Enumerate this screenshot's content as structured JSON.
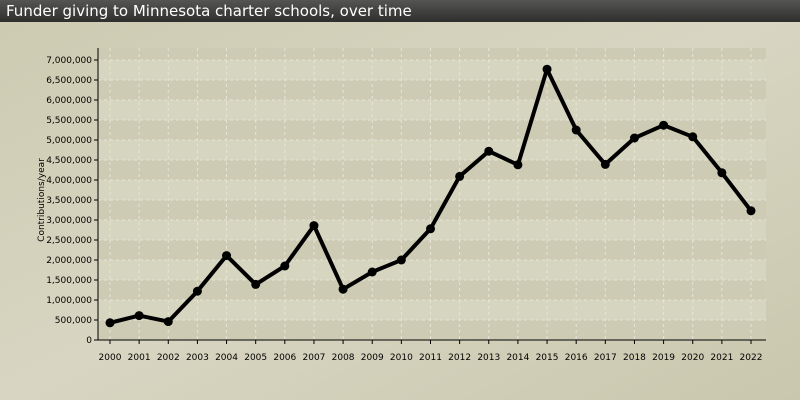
{
  "colors": {
    "title_bar": "#3a3a38",
    "background": "#cfcdb4",
    "plot_band_light": "#d6d5c0",
    "plot_band_dark": "#cdcbb4",
    "line": "#000000",
    "axis": "#000000",
    "grid": "#e6e5d6"
  },
  "chart_data": {
    "type": "line",
    "title": "Funder giving to Minnesota charter schools, over time",
    "xlabel": "",
    "ylabel": "Contributions/year",
    "x": [
      "2000",
      "2001",
      "2002",
      "2003",
      "2004",
      "2005",
      "2006",
      "2007",
      "2008",
      "2009",
      "2010",
      "2011",
      "2012",
      "2013",
      "2014",
      "2015",
      "2016",
      "2017",
      "2018",
      "2019",
      "2020",
      "2021",
      "2022"
    ],
    "series": [
      {
        "values": [
          430000,
          610000,
          460000,
          1220000,
          2110000,
          1390000,
          1850000,
          2860000,
          1270000,
          1700000,
          2000000,
          2780000,
          4090000,
          4720000,
          4380000,
          6770000,
          5250000,
          4390000,
          5050000,
          5370000,
          5080000,
          4180000,
          3230000
        ]
      }
    ],
    "ylim": [
      0,
      7000000
    ],
    "yticks": [
      "0",
      "500,000",
      "1,000,000",
      "1,500,000",
      "2,000,000",
      "2,500,000",
      "3,000,000",
      "3,500,000",
      "4,000,000",
      "4,500,000",
      "5,000,000",
      "5,500,000",
      "6,000,000",
      "6,500,000",
      "7,000,000"
    ],
    "grid": true,
    "legend": "none"
  }
}
